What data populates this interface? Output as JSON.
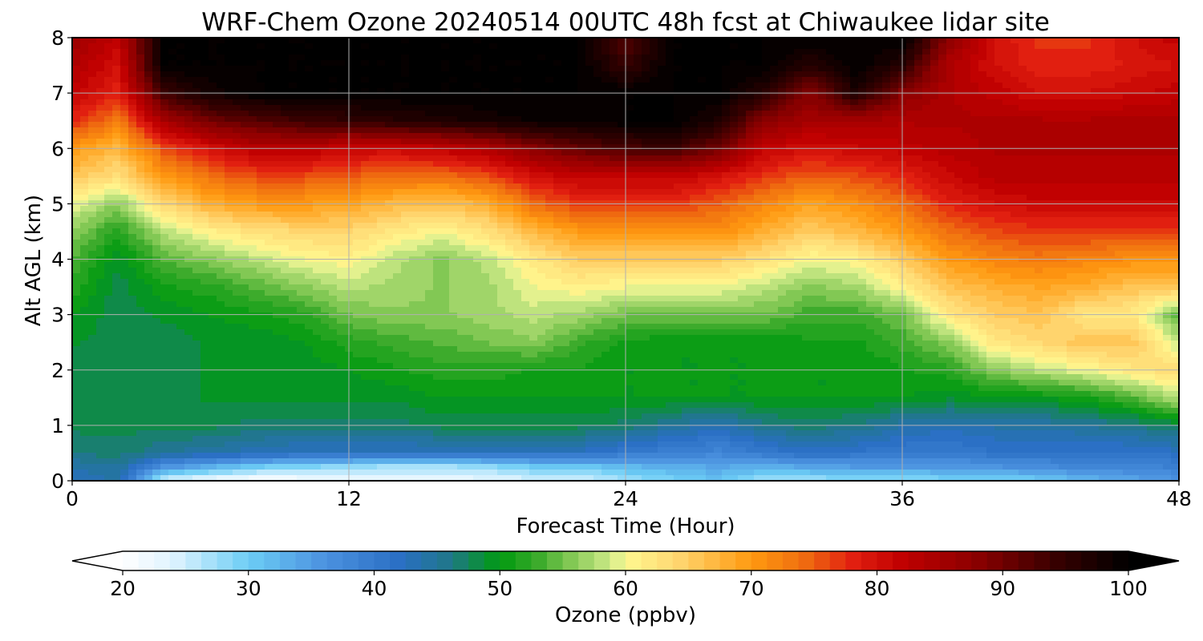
{
  "chart_data": {
    "type": "heatmap",
    "title": "WRF-Chem Ozone  20240514 00UTC 48h fcst at Chiwaukee lidar site",
    "xlabel": "Forecast Time (Hour)",
    "ylabel": "Alt AGL (km)",
    "xlim": [
      0,
      48
    ],
    "ylim": [
      0,
      8
    ],
    "xticks": [
      "0",
      "12",
      "24",
      "36",
      "48"
    ],
    "yticks": [
      "0",
      "1",
      "2",
      "3",
      "4",
      "5",
      "6",
      "7",
      "8"
    ],
    "grid": true,
    "colorbar": {
      "label": "Ozone  (ppbv)",
      "ticks": [
        "20",
        "30",
        "40",
        "50",
        "60",
        "70",
        "80",
        "90",
        "100"
      ],
      "min": 20,
      "max": 100,
      "extend": "both",
      "colors": [
        {
          "value": 20,
          "color": "#ffffff"
        },
        {
          "value": 24,
          "color": "#dff3ff"
        },
        {
          "value": 30,
          "color": "#6ccdf5"
        },
        {
          "value": 36,
          "color": "#4c92e0"
        },
        {
          "value": 42,
          "color": "#2a6fc4"
        },
        {
          "value": 46,
          "color": "#20778a"
        },
        {
          "value": 50,
          "color": "#009a10"
        },
        {
          "value": 53,
          "color": "#3aaa2a"
        },
        {
          "value": 56,
          "color": "#8ccc5a"
        },
        {
          "value": 59,
          "color": "#d2ec8c"
        },
        {
          "value": 60,
          "color": "#fff890"
        },
        {
          "value": 64,
          "color": "#ffd873"
        },
        {
          "value": 70,
          "color": "#ff9a10"
        },
        {
          "value": 74,
          "color": "#f07010"
        },
        {
          "value": 78,
          "color": "#e22010"
        },
        {
          "value": 82,
          "color": "#c00000"
        },
        {
          "value": 88,
          "color": "#8a0000"
        },
        {
          "value": 94,
          "color": "#3a0000"
        },
        {
          "value": 100,
          "color": "#000000"
        }
      ]
    },
    "x": [
      0,
      2,
      4,
      6,
      8,
      10,
      12,
      14,
      16,
      18,
      20,
      22,
      24,
      26,
      28,
      30,
      32,
      34,
      36,
      38,
      40,
      42,
      44,
      46,
      48
    ],
    "y": [
      0,
      0.25,
      0.5,
      1,
      1.5,
      2,
      2.5,
      3,
      3.5,
      4,
      4.5,
      5,
      5.5,
      6,
      6.5,
      7,
      7.5,
      8
    ],
    "z": [
      [
        42,
        44,
        24,
        22,
        20,
        21,
        22,
        22,
        22,
        23,
        24,
        24,
        27,
        29,
        31,
        27,
        27,
        28,
        28,
        29,
        29,
        30,
        32,
        34,
        36
      ],
      [
        44,
        45,
        36,
        33,
        30,
        29,
        28,
        27,
        27,
        28,
        30,
        30,
        32,
        33,
        34,
        33,
        34,
        35,
        35,
        35,
        36,
        37,
        38,
        38,
        39
      ],
      [
        46,
        47,
        45,
        44,
        43,
        42,
        42,
        42,
        42,
        42,
        42,
        42,
        40,
        39,
        38,
        40,
        42,
        41,
        40,
        40,
        41,
        41,
        41,
        41,
        42
      ],
      [
        48,
        48,
        48,
        48,
        47,
        47,
        47,
        47,
        48,
        48,
        48,
        48,
        47,
        45,
        43,
        46,
        47,
        46,
        44,
        43,
        44,
        44,
        45,
        46,
        48
      ],
      [
        48,
        48,
        48,
        49,
        49,
        49,
        49,
        49,
        50,
        50,
        50,
        50,
        50,
        50,
        50,
        50,
        50,
        50,
        50,
        49,
        50,
        50,
        51,
        54,
        58
      ],
      [
        48,
        48,
        48,
        49,
        49,
        49,
        50,
        51,
        52,
        52,
        51,
        51,
        50,
        50,
        50,
        50,
        50,
        50,
        51,
        52,
        56,
        58,
        60,
        62,
        64
      ],
      [
        49,
        48,
        48,
        49,
        49,
        50,
        52,
        53,
        54,
        55,
        56,
        53,
        51,
        50,
        50,
        50,
        51,
        51,
        53,
        56,
        62,
        64,
        66,
        66,
        58
      ],
      [
        50,
        48,
        49,
        50,
        51,
        52,
        55,
        56,
        56,
        57,
        58,
        57,
        55,
        55,
        55,
        55,
        53,
        53,
        55,
        62,
        65,
        66,
        62,
        62,
        54
      ],
      [
        52,
        48,
        51,
        52,
        54,
        56,
        58,
        57,
        56,
        57,
        60,
        61,
        60,
        60,
        60,
        58,
        56,
        57,
        61,
        66,
        68,
        69,
        68,
        66,
        66
      ],
      [
        54,
        49,
        54,
        56,
        58,
        60,
        61,
        58,
        56,
        58,
        62,
        65,
        65,
        65,
        65,
        63,
        60,
        61,
        65,
        70,
        72,
        73,
        72,
        71,
        71
      ],
      [
        56,
        52,
        58,
        61,
        63,
        64,
        64,
        62,
        60,
        63,
        67,
        70,
        71,
        71,
        71,
        68,
        65,
        67,
        70,
        74,
        76,
        77,
        77,
        77,
        77
      ],
      [
        60,
        56,
        64,
        68,
        70,
        70,
        69,
        67,
        66,
        68,
        74,
        77,
        77,
        77,
        75,
        72,
        69,
        71,
        74,
        78,
        80,
        81,
        81,
        81,
        81
      ],
      [
        66,
        63,
        70,
        74,
        76,
        76,
        75,
        74,
        74,
        76,
        80,
        82,
        82,
        82,
        80,
        77,
        75,
        76,
        78,
        81,
        83,
        83,
        83,
        83,
        83
      ],
      [
        70,
        67,
        76,
        80,
        83,
        83,
        81,
        81,
        82,
        84,
        88,
        91,
        93,
        94,
        90,
        82,
        80,
        81,
        82,
        83,
        84,
        84,
        84,
        84,
        84
      ],
      [
        78,
        73,
        85,
        90,
        92,
        94,
        95,
        96,
        97,
        98,
        99,
        99,
        100,
        100,
        97,
        88,
        85,
        85,
        84,
        84,
        84,
        84,
        84,
        84,
        84
      ],
      [
        82,
        78,
        94,
        98,
        100,
        100,
        100,
        100,
        100,
        100,
        100,
        100,
        100,
        100,
        100,
        96,
        88,
        97,
        88,
        84,
        82,
        80,
        80,
        81,
        82
      ],
      [
        84,
        80,
        100,
        100,
        100,
        100,
        100,
        100,
        100,
        100,
        100,
        100,
        94,
        100,
        100,
        100,
        96,
        100,
        96,
        84,
        80,
        78,
        78,
        79,
        80
      ],
      [
        86,
        82,
        100,
        100,
        100,
        100,
        100,
        100,
        100,
        100,
        100,
        100,
        92,
        100,
        100,
        100,
        100,
        100,
        100,
        88,
        80,
        77,
        77,
        80,
        82
      ]
    ]
  }
}
